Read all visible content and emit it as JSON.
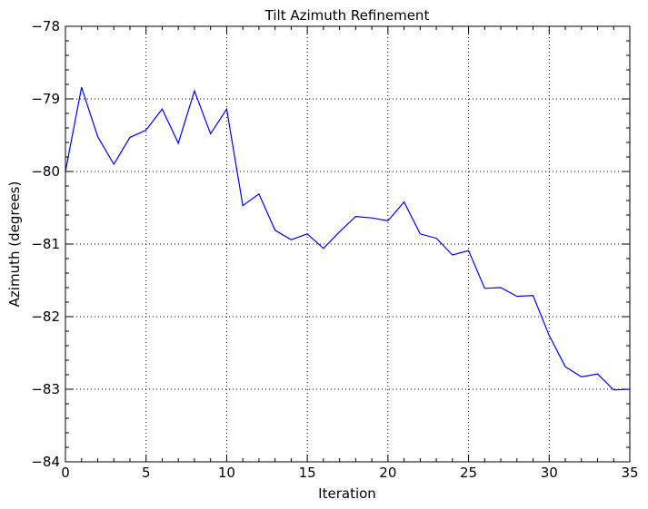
{
  "chart_data": {
    "type": "line",
    "title": "Tilt Azimuth Refinement",
    "xlabel": "Iteration",
    "ylabel": "Azimuth (degrees)",
    "xlim": [
      0,
      35
    ],
    "ylim": [
      -84,
      -78
    ],
    "xticks": [
      0,
      5,
      10,
      15,
      20,
      25,
      30,
      35
    ],
    "yticks": [
      -84,
      -83,
      -82,
      -81,
      -80,
      -79,
      -78
    ],
    "xtick_labels": [
      "0",
      "5",
      "10",
      "15",
      "20",
      "25",
      "30",
      "35"
    ],
    "ytick_labels": [
      "−84",
      "−83",
      "−82",
      "−81",
      "−80",
      "−79",
      "−78"
    ],
    "grid": true,
    "line_color": "#0000ff",
    "series": [
      {
        "x": [
          0,
          1,
          2,
          3,
          4,
          5,
          6,
          7,
          8,
          9,
          10,
          11,
          12,
          13,
          14,
          15,
          16,
          17,
          18,
          19,
          20,
          21,
          22,
          23,
          24,
          25,
          26,
          27,
          28,
          29,
          30,
          31,
          32,
          33,
          34,
          35
        ],
        "values": [
          -80.0,
          -78.84,
          -79.52,
          -79.9,
          -79.53,
          -79.43,
          -79.14,
          -79.61,
          -78.89,
          -79.48,
          -79.14,
          -80.47,
          -80.31,
          -80.81,
          -80.94,
          -80.86,
          -81.06,
          -80.83,
          -80.62,
          -80.64,
          -80.68,
          -80.42,
          -80.86,
          -80.92,
          -81.15,
          -81.09,
          -81.61,
          -81.6,
          -81.72,
          -81.71,
          -82.26,
          -82.69,
          -82.83,
          -82.79,
          -83.01,
          -83.0
        ]
      }
    ]
  }
}
